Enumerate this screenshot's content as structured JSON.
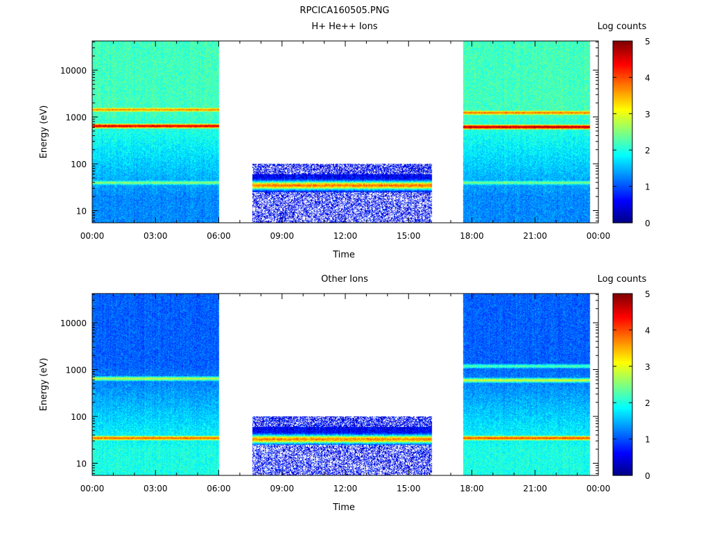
{
  "figure": {
    "title": "RPCICA160505.PNG"
  },
  "chart_data": [
    {
      "type": "heatmap",
      "title": "H+ He++ Ions",
      "xlabel": "Time",
      "ylabel": "Energy (eV)",
      "x_ticks": [
        "00:00",
        "03:00",
        "06:00",
        "09:00",
        "12:00",
        "15:00",
        "18:00",
        "21:00",
        "00:00"
      ],
      "x_range_hours": [
        0,
        24
      ],
      "y_scale": "log",
      "y_ticks": [
        "10",
        "100",
        "1000",
        "10000"
      ],
      "y_range": [
        5.5,
        42000
      ],
      "colorbar": {
        "label": "Log counts",
        "ticks": [
          "0",
          "1",
          "2",
          "3",
          "4",
          "5"
        ],
        "range": [
          0,
          5
        ],
        "colormap": "jet"
      },
      "segments": [
        {
          "start_hour": 0.0,
          "end_hour": 6.0,
          "mode": "full",
          "bands": [
            {
              "energy_ev": 650,
              "level": 3.9,
              "note": "dominant"
            },
            {
              "energy_ev": 1450,
              "level": 3.0
            },
            {
              "energy_ev": 40,
              "level": 2.1
            }
          ]
        },
        {
          "start_hour": 7.6,
          "end_hour": 16.1,
          "mode": "low-energy",
          "energy_range_ev": [
            5.5,
            100
          ],
          "bands": [
            {
              "energy_ev": 35,
              "level": 3.4,
              "note": "dominant"
            }
          ]
        },
        {
          "start_hour": 17.6,
          "end_hour": 23.6,
          "mode": "full",
          "bands": [
            {
              "energy_ev": 620,
              "level": 4.1,
              "note": "dominant"
            },
            {
              "energy_ev": 1250,
              "level": 3.1
            },
            {
              "energy_ev": 40,
              "level": 2.0
            }
          ]
        }
      ],
      "background_level_high_energy": 2.2,
      "background_level_low_energy": 1.3
    },
    {
      "type": "heatmap",
      "title": "Other Ions",
      "xlabel": "Time",
      "ylabel": "Energy (eV)",
      "x_ticks": [
        "00:00",
        "03:00",
        "06:00",
        "09:00",
        "12:00",
        "15:00",
        "18:00",
        "21:00",
        "00:00"
      ],
      "x_range_hours": [
        0,
        24
      ],
      "y_scale": "log",
      "y_ticks": [
        "10",
        "100",
        "1000",
        "10000"
      ],
      "y_range": [
        5.5,
        42000
      ],
      "colorbar": {
        "label": "Log counts",
        "ticks": [
          "0",
          "1",
          "2",
          "3",
          "4",
          "5"
        ],
        "range": [
          0,
          5
        ],
        "colormap": "jet"
      },
      "segments": [
        {
          "start_hour": 0.0,
          "end_hour": 6.0,
          "mode": "full",
          "bands": [
            {
              "energy_ev": 650,
              "level": 2.4
            },
            {
              "energy_ev": 35,
              "level": 3.3,
              "note": "dominant"
            }
          ]
        },
        {
          "start_hour": 7.6,
          "end_hour": 16.1,
          "mode": "low-energy",
          "energy_range_ev": [
            5.5,
            100
          ],
          "bands": [
            {
              "energy_ev": 33,
              "level": 3.3,
              "note": "dominant"
            }
          ]
        },
        {
          "start_hour": 17.6,
          "end_hour": 23.6,
          "mode": "full",
          "bands": [
            {
              "energy_ev": 600,
              "level": 2.5
            },
            {
              "energy_ev": 1200,
              "level": 1.9
            },
            {
              "energy_ev": 35,
              "level": 3.4,
              "note": "dominant"
            }
          ]
        }
      ],
      "background_level_high_energy": 1.1,
      "background_level_low_energy": 2.0
    }
  ]
}
